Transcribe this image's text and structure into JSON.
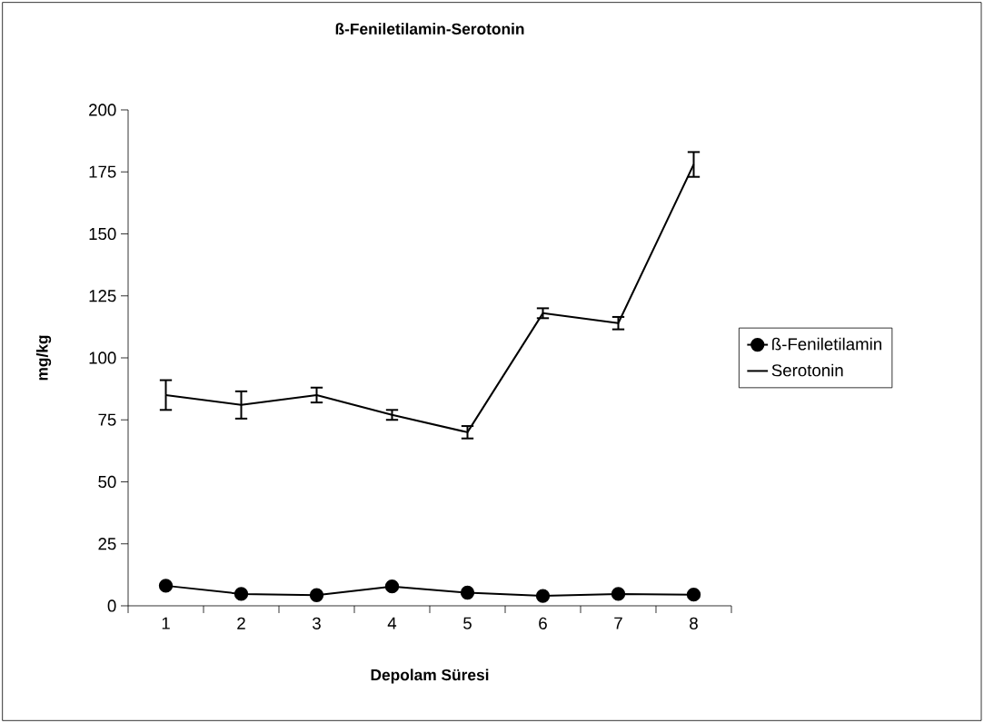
{
  "chart_data": {
    "type": "line",
    "title": "ß-Feniletilamin-Serotonin",
    "xlabel": "Depolam Süresi",
    "ylabel": "mg/kg",
    "categories": [
      "1",
      "2",
      "3",
      "4",
      "5",
      "6",
      "7",
      "8"
    ],
    "ylim": [
      0,
      200
    ],
    "yticks": [
      0,
      25,
      50,
      75,
      100,
      125,
      150,
      175,
      200
    ],
    "legend": "right",
    "line_style": "solid",
    "series": [
      {
        "name": "ß-Feniletilamin",
        "color": "#000000",
        "marker": "circle",
        "values": [
          8.1,
          4.8,
          4.3,
          7.8,
          5.3,
          4.0,
          4.8,
          4.5
        ]
      },
      {
        "name": "Serotonin",
        "color": "#000000",
        "marker": "none",
        "values": [
          85,
          81,
          85,
          77,
          70,
          118,
          114,
          178
        ],
        "errors": [
          6,
          5.5,
          3,
          2,
          2.5,
          2,
          2.5,
          5
        ]
      }
    ]
  }
}
